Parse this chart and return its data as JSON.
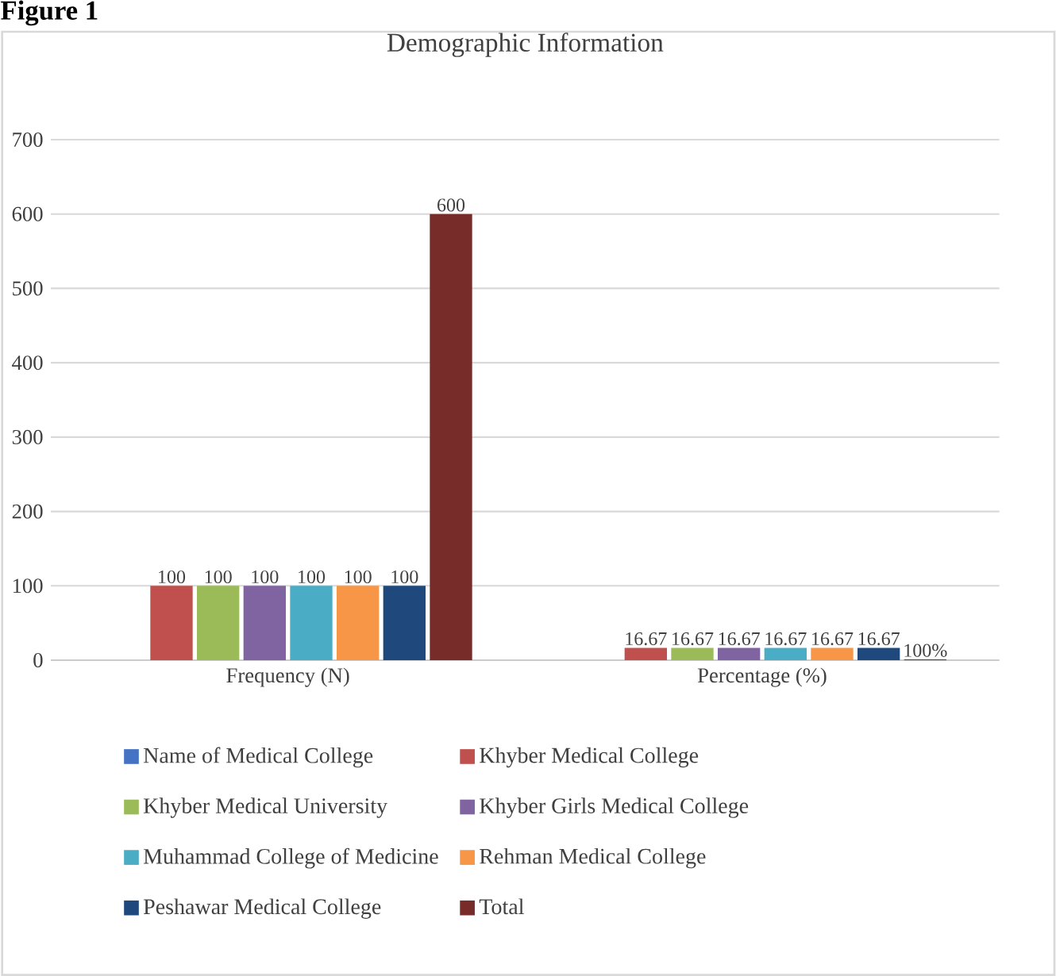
{
  "chart_data": {
    "type": "bar",
    "title": "Demographic Information",
    "annotations": [
      "Figure 1"
    ],
    "categories": [
      "Frequency (N)",
      "Percentage (%)"
    ],
    "series": [
      {
        "name": "Name of Medical College",
        "color": "#4472c4",
        "values": [
          null,
          null
        ]
      },
      {
        "name": "Khyber Medical College",
        "color": "#c0504d",
        "values": [
          100,
          16.67
        ],
        "value_labels": [
          "100",
          "16.67"
        ]
      },
      {
        "name": "Khyber Medical University",
        "color": "#9bbb59",
        "values": [
          100,
          16.67
        ],
        "value_labels": [
          "100",
          "16.67"
        ]
      },
      {
        "name": "Khyber Girls Medical College",
        "color": "#8064a2",
        "values": [
          100,
          16.67
        ],
        "value_labels": [
          "100",
          "16.67"
        ]
      },
      {
        "name": "Muhammad College of Medicine",
        "color": "#4bacc6",
        "values": [
          100,
          16.67
        ],
        "value_labels": [
          "100",
          "16.67"
        ]
      },
      {
        "name": "Rehman Medical College",
        "color": "#f79646",
        "values": [
          100,
          16.67
        ],
        "value_labels": [
          "100",
          "16.67"
        ]
      },
      {
        "name": "Peshawar Medical College",
        "color": "#1f497d",
        "values": [
          100,
          16.67
        ],
        "value_labels": [
          "100",
          "16.67"
        ]
      },
      {
        "name": "Total",
        "color": "#772c2a",
        "values": [
          600,
          1
        ],
        "value_labels": [
          "600",
          "100%"
        ]
      }
    ],
    "ylim": [
      0,
      700
    ],
    "yticks": [
      0,
      100,
      200,
      300,
      400,
      500,
      600,
      700
    ],
    "grid": "y",
    "legend": "bottom"
  }
}
